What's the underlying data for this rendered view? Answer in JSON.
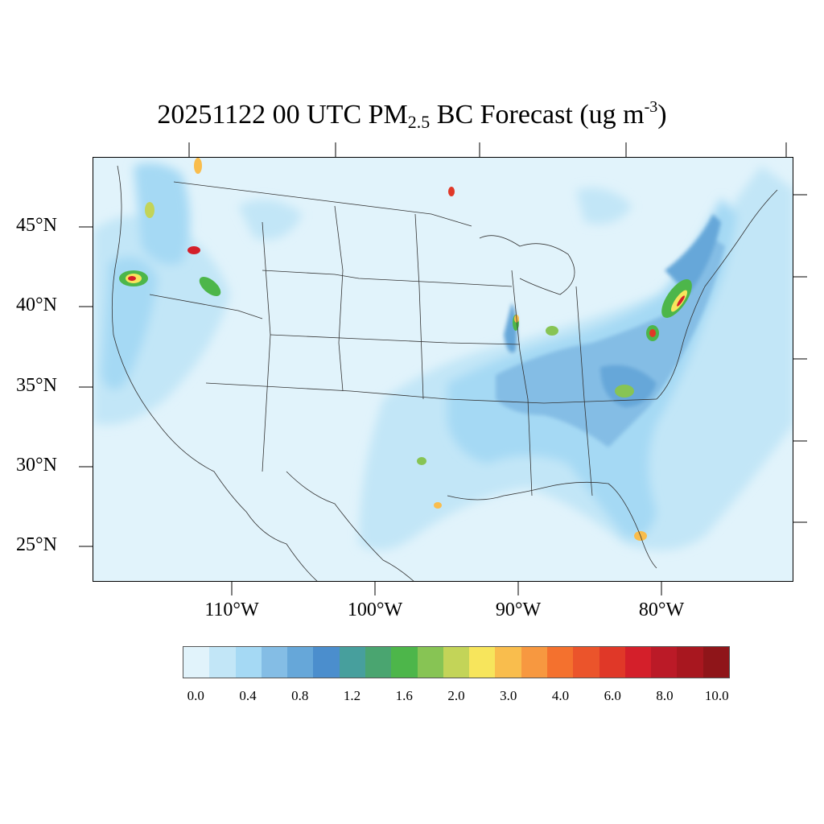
{
  "title": {
    "prefix": "20251122 00 UTC PM",
    "sub": "2.5",
    "mid": " BC Forecast (ug m",
    "sup": "-3",
    "suffix": ")"
  },
  "lat_labels": [
    "45°N",
    "40°N",
    "35°N",
    "30°N",
    "25°N"
  ],
  "lon_labels": [
    "110°W",
    "100°W",
    "90°W",
    "80°W"
  ],
  "colorbar": {
    "colors": [
      "#e1f3fb",
      "#c2e6f7",
      "#a5d9f4",
      "#84bde5",
      "#66a7d9",
      "#4b8ecd",
      "#479f9d",
      "#4aa570",
      "#4db64a",
      "#87c454",
      "#c3d458",
      "#f7e55c",
      "#f9bd4d",
      "#f79840",
      "#f4712e",
      "#eb542b",
      "#e03828",
      "#d41f2a",
      "#bb1a27",
      "#a8171f",
      "#8f1519"
    ],
    "labels": [
      "0.0",
      "0.4",
      "0.8",
      "1.2",
      "1.6",
      "2.0",
      "3.0",
      "4.0",
      "6.0",
      "8.0",
      "10.0"
    ]
  }
}
